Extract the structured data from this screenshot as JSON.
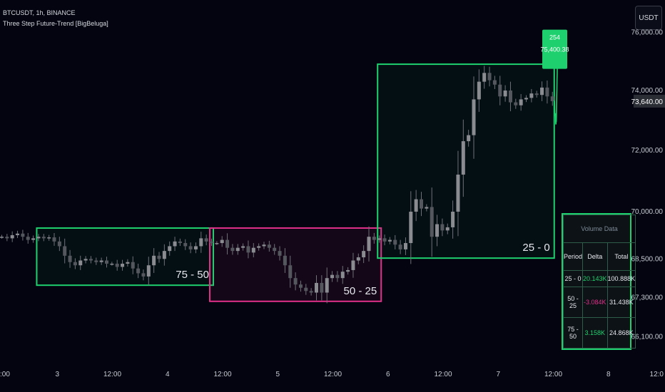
{
  "header": {
    "symbol": "BTCUSDT, 1h, BINANCE",
    "indicator": "Three Step Future-Trend [BigBeluga]"
  },
  "currency_button": "USDT",
  "colors": {
    "background": "#03040f",
    "bull": "#1fd16e",
    "bear": "#e0308a",
    "candle": "#6f7178"
  },
  "chart_data": {
    "type": "candlestick",
    "x_ticks": [
      ":00",
      "3",
      "12:00",
      "4",
      "12:00",
      "5",
      "12:00",
      "6",
      "12:00",
      "7",
      "12:00",
      "8",
      "12:0"
    ],
    "y_ticks": [
      "76,000.00",
      "74,000.00",
      "72,000.00",
      "70,000.00",
      "68,500.00",
      "67,300.00",
      "66,100.00"
    ],
    "y_scale": "log",
    "current_price": "73,640.00",
    "close_series": [
      69200,
      69150,
      69250,
      69300,
      69200,
      69100,
      69150,
      69200,
      69150,
      69180,
      69050,
      68900,
      68600,
      68400,
      68300,
      68450,
      68500,
      68450,
      68400,
      68450,
      68350,
      68350,
      68250,
      68350,
      68400,
      68200,
      68050,
      67950,
      68300,
      68600,
      68500,
      68750,
      68900,
      69050,
      69000,
      68900,
      68800,
      68900,
      69150,
      69050,
      69000,
      69000,
      69100,
      68850,
      68750,
      68850,
      68900,
      68700,
      68850,
      68900,
      68950,
      68850,
      68750,
      68600,
      68300,
      67900,
      67700,
      67600,
      67500,
      67450,
      67750,
      67450,
      67900,
      68000,
      67900,
      68100,
      68150,
      68450,
      68550,
      68750,
      69200,
      69100,
      69150,
      69050,
      69100,
      68950,
      68800,
      69000,
      70000,
      70400,
      70100,
      70150,
      69200,
      69600,
      69400,
      69500,
      70000,
      71200,
      72300,
      72500,
      73700,
      74300,
      74600,
      74350,
      74200,
      73800,
      74000,
      73600,
      73500,
      73700,
      73750,
      73900,
      73850,
      74100,
      73800,
      73640
    ],
    "forecast": [
      {
        "label": "254",
        "value": "75,400.38"
      }
    ],
    "zones": [
      {
        "label": "75 - 50",
        "direction": "bull",
        "period_start": 75,
        "period_end": 50
      },
      {
        "label": "50 - 25",
        "direction": "bear",
        "period_start": 50,
        "period_end": 25
      },
      {
        "label": "25 - 0",
        "direction": "bull",
        "period_start": 25,
        "period_end": 0
      }
    ],
    "table": {
      "title": "Volume Data",
      "columns": [
        "Period",
        "Delta",
        "Total"
      ],
      "rows": [
        {
          "period": "25 - 0",
          "delta": "20.143K",
          "total": "100.888K",
          "sign": "pos"
        },
        {
          "period": "50 - 25",
          "delta": "-3.084K",
          "total": "31.438K",
          "sign": "neg"
        },
        {
          "period": "75 - 50",
          "delta": "3.158K",
          "total": "24.868K",
          "sign": "pos"
        }
      ]
    }
  }
}
